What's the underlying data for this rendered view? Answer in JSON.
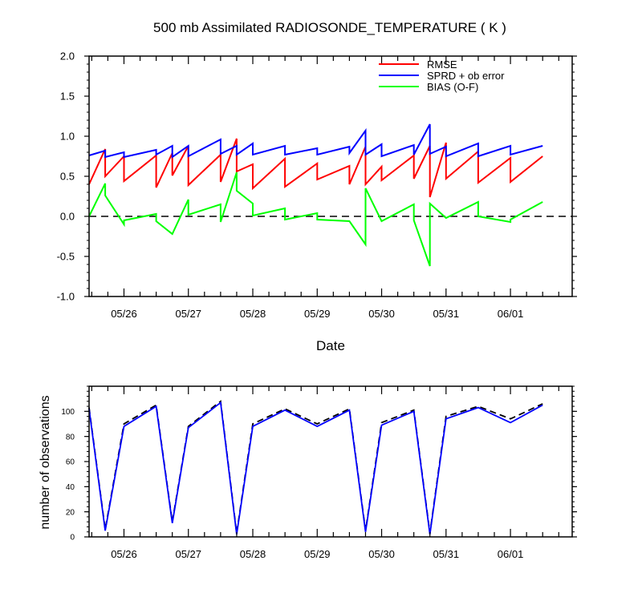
{
  "chart_data": [
    {
      "type": "line",
      "title": "500 mb Assimilated RADIOSONDE_TEMPERATURE ( K )",
      "xlabel": "Date",
      "ylabel": "",
      "xlim": [
        "05/25 11:00",
        "06/01 23:00"
      ],
      "ylim": [
        -1.0,
        2.0
      ],
      "yticks": [
        "-1.0",
        "-0.5",
        "0.0",
        "0.5",
        "1.0",
        "1.5",
        "2.0"
      ],
      "xticks": [
        "05/26",
        "05/27",
        "05/28",
        "05/29",
        "05/30",
        "05/31",
        "06/01"
      ],
      "grid": false,
      "legend_position": "top-right",
      "reference_line": {
        "y": 0.0,
        "style": "dashed",
        "color": "#000000"
      },
      "series": [
        {
          "name": "RMSE",
          "color": "#ff0000",
          "points": [
            [
              "05/25 11:00",
              0.4
            ],
            [
              "05/25 17:00",
              0.84
            ],
            [
              "05/25 17:00",
              0.5
            ],
            [
              "05/26 00:00",
              0.75
            ],
            [
              "05/26 00:00",
              0.44
            ],
            [
              "05/26 12:00",
              0.76
            ],
            [
              "05/26 12:00",
              0.36
            ],
            [
              "05/26 18:00",
              0.79
            ],
            [
              "05/26 18:00",
              0.51
            ],
            [
              "05/27 00:00",
              0.88
            ],
            [
              "05/27 00:00",
              0.39
            ],
            [
              "05/27 12:00",
              0.77
            ],
            [
              "05/27 12:00",
              0.43
            ],
            [
              "05/27 18:00",
              0.97
            ],
            [
              "05/27 18:00",
              0.56
            ],
            [
              "05/28 00:00",
              0.65
            ],
            [
              "05/28 00:00",
              0.35
            ],
            [
              "05/28 12:00",
              0.72
            ],
            [
              "05/28 12:00",
              0.37
            ],
            [
              "05/29 00:00",
              0.66
            ],
            [
              "05/29 00:00",
              0.46
            ],
            [
              "05/29 12:00",
              0.63
            ],
            [
              "05/29 12:00",
              0.4
            ],
            [
              "05/29 18:00",
              0.87
            ],
            [
              "05/29 18:00",
              0.4
            ],
            [
              "05/30 00:00",
              0.62
            ],
            [
              "05/30 00:00",
              0.45
            ],
            [
              "05/30 12:00",
              0.76
            ],
            [
              "05/30 12:00",
              0.47
            ],
            [
              "05/30 18:00",
              0.88
            ],
            [
              "05/30 18:00",
              0.24
            ],
            [
              "05/31 00:00",
              0.92
            ],
            [
              "05/31 00:00",
              0.47
            ],
            [
              "05/31 12:00",
              0.81
            ],
            [
              "05/31 12:00",
              0.42
            ],
            [
              "06/01 00:00",
              0.73
            ],
            [
              "06/01 00:00",
              0.43
            ],
            [
              "06/01 12:00",
              0.75
            ]
          ]
        },
        {
          "name": "SPRD + ob error",
          "color": "#0000ff",
          "points": [
            [
              "05/25 11:00",
              0.76
            ],
            [
              "05/25 17:00",
              0.82
            ],
            [
              "05/25 17:00",
              0.74
            ],
            [
              "05/26 00:00",
              0.8
            ],
            [
              "05/26 00:00",
              0.74
            ],
            [
              "05/26 12:00",
              0.83
            ],
            [
              "05/26 12:00",
              0.77
            ],
            [
              "05/26 18:00",
              0.88
            ],
            [
              "05/26 18:00",
              0.74
            ],
            [
              "05/27 00:00",
              0.88
            ],
            [
              "05/27 00:00",
              0.75
            ],
            [
              "05/27 12:00",
              0.96
            ],
            [
              "05/27 12:00",
              0.78
            ],
            [
              "05/27 18:00",
              0.88
            ],
            [
              "05/27 18:00",
              0.77
            ],
            [
              "05/28 00:00",
              0.91
            ],
            [
              "05/28 00:00",
              0.77
            ],
            [
              "05/28 12:00",
              0.88
            ],
            [
              "05/28 12:00",
              0.77
            ],
            [
              "05/29 00:00",
              0.85
            ],
            [
              "05/29 00:00",
              0.77
            ],
            [
              "05/29 12:00",
              0.87
            ],
            [
              "05/29 12:00",
              0.79
            ],
            [
              "05/29 18:00",
              1.07
            ],
            [
              "05/29 18:00",
              0.77
            ],
            [
              "05/30 00:00",
              0.9
            ],
            [
              "05/30 00:00",
              0.75
            ],
            [
              "05/30 12:00",
              0.89
            ],
            [
              "05/30 12:00",
              0.77
            ],
            [
              "05/30 18:00",
              1.15
            ],
            [
              "05/30 18:00",
              0.78
            ],
            [
              "05/31 00:00",
              0.87
            ],
            [
              "05/31 00:00",
              0.75
            ],
            [
              "05/31 12:00",
              0.91
            ],
            [
              "05/31 12:00",
              0.75
            ],
            [
              "06/01 00:00",
              0.88
            ],
            [
              "06/01 00:00",
              0.77
            ],
            [
              "06/01 12:00",
              0.88
            ]
          ]
        },
        {
          "name": "BIAS (O-F)",
          "color": "#00ff00",
          "points": [
            [
              "05/25 11:00",
              0.0
            ],
            [
              "05/25 17:00",
              0.41
            ],
            [
              "05/25 17:00",
              0.26
            ],
            [
              "05/26 00:00",
              -0.1
            ],
            [
              "05/26 00:00",
              -0.05
            ],
            [
              "05/26 12:00",
              0.03
            ],
            [
              "05/26 12:00",
              -0.06
            ],
            [
              "05/26 18:00",
              -0.22
            ],
            [
              "05/27 00:00",
              0.21
            ],
            [
              "05/27 00:00",
              0.02
            ],
            [
              "05/27 12:00",
              0.15
            ],
            [
              "05/27 12:00",
              -0.07
            ],
            [
              "05/27 18:00",
              0.55
            ],
            [
              "05/27 18:00",
              0.32
            ],
            [
              "05/28 00:00",
              0.16
            ],
            [
              "05/28 00:00",
              0.01
            ],
            [
              "05/28 12:00",
              0.1
            ],
            [
              "05/28 12:00",
              -0.04
            ],
            [
              "05/29 00:00",
              0.04
            ],
            [
              "05/29 00:00",
              -0.04
            ],
            [
              "05/29 12:00",
              -0.06
            ],
            [
              "05/29 18:00",
              -0.35
            ],
            [
              "05/29 18:00",
              0.35
            ],
            [
              "05/30 00:00",
              -0.06
            ],
            [
              "05/30 12:00",
              0.15
            ],
            [
              "05/30 12:00",
              -0.05
            ],
            [
              "05/30 18:00",
              -0.62
            ],
            [
              "05/30 18:00",
              0.16
            ],
            [
              "05/31 00:00",
              -0.02
            ],
            [
              "05/31 12:00",
              0.18
            ],
            [
              "05/31 12:00",
              0.0
            ],
            [
              "06/01 00:00",
              -0.07
            ],
            [
              "06/01 00:00",
              -0.04
            ],
            [
              "06/01 12:00",
              0.18
            ]
          ]
        }
      ]
    },
    {
      "type": "line",
      "title": "",
      "xlabel": "",
      "ylabel": "number of observations",
      "xlim": [
        "05/25 11:00",
        "06/01 23:00"
      ],
      "ylim": [
        0,
        120
      ],
      "yticks": [
        "0",
        "20",
        "40",
        "60",
        "80",
        "100"
      ],
      "xticks": [
        "05/26",
        "05/27",
        "05/28",
        "05/29",
        "05/30",
        "05/31",
        "06/01"
      ],
      "grid": false,
      "series": [
        {
          "color": "#000000",
          "style": "dashed",
          "points": [
            [
              "05/25 11:00",
              103
            ],
            [
              "05/25 17:00",
              6
            ],
            [
              "05/26 00:00",
              90
            ],
            [
              "05/26 12:00",
              105
            ],
            [
              "05/26 18:00",
              12
            ],
            [
              "05/27 00:00",
              88
            ],
            [
              "05/27 12:00",
              108
            ],
            [
              "05/27 18:00",
              3
            ],
            [
              "05/28 00:00",
              90
            ],
            [
              "05/28 12:00",
              102
            ],
            [
              "05/29 00:00",
              90
            ],
            [
              "05/29 12:00",
              102
            ],
            [
              "05/29 18:00",
              5
            ],
            [
              "05/30 00:00",
              91
            ],
            [
              "05/30 12:00",
              101
            ],
            [
              "05/30 18:00",
              3
            ],
            [
              "05/31 00:00",
              96
            ],
            [
              "05/31 12:00",
              104
            ],
            [
              "06/01 00:00",
              94
            ],
            [
              "06/01 12:00",
              106
            ]
          ]
        },
        {
          "color": "#0000ff",
          "style": "solid",
          "points": [
            [
              "05/25 11:00",
              102
            ],
            [
              "05/25 17:00",
              5
            ],
            [
              "05/26 00:00",
              88
            ],
            [
              "05/26 12:00",
              104
            ],
            [
              "05/26 18:00",
              11
            ],
            [
              "05/27 00:00",
              87
            ],
            [
              "05/27 12:00",
              107
            ],
            [
              "05/27 18:00",
              2
            ],
            [
              "05/28 00:00",
              88
            ],
            [
              "05/28 12:00",
              101
            ],
            [
              "05/29 00:00",
              88
            ],
            [
              "05/29 12:00",
              101
            ],
            [
              "05/29 18:00",
              4
            ],
            [
              "05/30 00:00",
              89
            ],
            [
              "05/30 12:00",
              100
            ],
            [
              "05/30 18:00",
              2
            ],
            [
              "05/31 00:00",
              94
            ],
            [
              "05/31 12:00",
              103
            ],
            [
              "06/01 00:00",
              91
            ],
            [
              "06/01 12:00",
              105
            ]
          ]
        }
      ]
    }
  ]
}
